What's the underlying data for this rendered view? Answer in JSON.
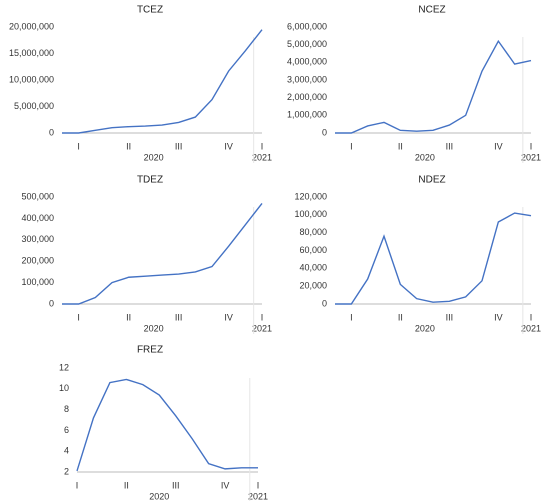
{
  "chart_data": [
    {
      "type": "line",
      "title": "TCEZ",
      "categories": [
        null,
        "I",
        null,
        null,
        "II",
        null,
        null,
        "III",
        null,
        null,
        "IV",
        null,
        "I"
      ],
      "year_groups": [
        {
          "label": "2020",
          "from": 0,
          "to": 11
        },
        {
          "label": "2021",
          "from": 12,
          "to": 12
        }
      ],
      "series": [
        {
          "name": "TCEZ",
          "color": "#4472c4",
          "values": [
            0,
            0,
            500000,
            1000000,
            1200000,
            1300000,
            1500000,
            2000000,
            3000000,
            6300000,
            11700000,
            15500000,
            19500000
          ]
        }
      ],
      "ylim": [
        0,
        20000000
      ],
      "yticks": [
        0,
        {
          "value": 5000000,
          "label": "5,000,000"
        },
        {
          "value": 10000000,
          "label": "10,000,000"
        },
        {
          "value": 15000000,
          "label": "15,000,000"
        },
        {
          "value": 20000000,
          "label": "20,000,000"
        }
      ]
    },
    {
      "type": "line",
      "title": "NCEZ",
      "categories": [
        null,
        "I",
        null,
        null,
        "II",
        null,
        null,
        "III",
        null,
        null,
        "IV",
        null,
        "I"
      ],
      "year_groups": [
        {
          "label": "2020",
          "from": 0,
          "to": 11
        },
        {
          "label": "2021",
          "from": 12,
          "to": 12
        }
      ],
      "series": [
        {
          "name": "NCEZ",
          "color": "#4472c4",
          "values": [
            0,
            0,
            400000,
            600000,
            150000,
            100000,
            150000,
            450000,
            1000000,
            3500000,
            5200000,
            3900000,
            4100000
          ]
        }
      ],
      "ylim": [
        0,
        6000000
      ],
      "yticks": [
        0,
        {
          "value": 1000000,
          "label": "1,000,000"
        },
        {
          "value": 2000000,
          "label": "2,000,000"
        },
        {
          "value": 3000000,
          "label": "3,000,000"
        },
        {
          "value": 4000000,
          "label": "4,000,000"
        },
        {
          "value": 5000000,
          "label": "5,000,000"
        },
        {
          "value": 6000000,
          "label": "6,000,000"
        }
      ]
    },
    {
      "type": "line",
      "title": "TDEZ",
      "categories": [
        null,
        "I",
        null,
        null,
        "II",
        null,
        null,
        "III",
        null,
        null,
        "IV",
        null,
        "I"
      ],
      "year_groups": [
        {
          "label": "2020",
          "from": 0,
          "to": 11
        },
        {
          "label": "2021",
          "from": 12,
          "to": 12
        }
      ],
      "series": [
        {
          "name": "TDEZ",
          "color": "#4472c4",
          "values": [
            0,
            0,
            30000,
            100000,
            125000,
            130000,
            135000,
            140000,
            150000,
            175000,
            270000,
            370000,
            470000
          ]
        }
      ],
      "ylim": [
        0,
        500000
      ],
      "yticks": [
        0,
        {
          "value": 100000,
          "label": "100,000"
        },
        {
          "value": 200000,
          "label": "200,000"
        },
        {
          "value": 300000,
          "label": "300,000"
        },
        {
          "value": 400000,
          "label": "400,000"
        },
        {
          "value": 500000,
          "label": "500,000"
        }
      ]
    },
    {
      "type": "line",
      "title": "NDEZ",
      "categories": [
        null,
        "I",
        null,
        null,
        "II",
        null,
        null,
        "III",
        null,
        null,
        "IV",
        null,
        "I"
      ],
      "year_groups": [
        {
          "label": "2020",
          "from": 0,
          "to": 11
        },
        {
          "label": "2021",
          "from": 12,
          "to": 12
        }
      ],
      "series": [
        {
          "name": "NDEZ",
          "color": "#4472c4",
          "values": [
            0,
            0,
            28000,
            76000,
            22000,
            6000,
            2000,
            3000,
            8000,
            26000,
            92000,
            102000,
            99000
          ]
        }
      ],
      "ylim": [
        0,
        120000
      ],
      "yticks": [
        0,
        {
          "value": 20000,
          "label": "20,000"
        },
        {
          "value": 40000,
          "label": "40,000"
        },
        {
          "value": 60000,
          "label": "60,000"
        },
        {
          "value": 80000,
          "label": "80,000"
        },
        {
          "value": 100000,
          "label": "100,000"
        },
        {
          "value": 120000,
          "label": "120,000"
        }
      ]
    },
    {
      "type": "line",
      "title": "FREZ",
      "categories": [
        "I",
        null,
        null,
        "II",
        null,
        null,
        "III",
        null,
        null,
        "IV",
        null,
        "I"
      ],
      "year_groups": [
        {
          "label": "2020",
          "from": 0,
          "to": 10
        },
        {
          "label": "2021",
          "from": 11,
          "to": 11
        }
      ],
      "series": [
        {
          "name": "FREZ",
          "color": "#4472c4",
          "values": [
            2.1,
            7.2,
            10.6,
            10.9,
            10.4,
            9.4,
            7.4,
            5.2,
            2.8,
            2.3,
            2.4,
            2.4
          ]
        }
      ],
      "ylim": [
        2,
        12
      ],
      "yticks": [
        2,
        4,
        6,
        8,
        10,
        12
      ]
    }
  ]
}
